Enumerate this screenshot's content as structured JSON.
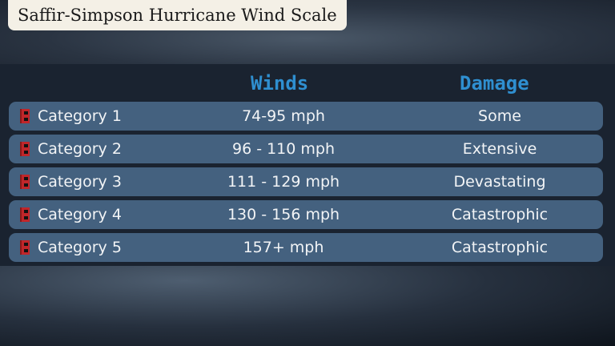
{
  "title": "Saffir-Simpson Hurricane Wind Scale",
  "headers": {
    "winds": "Winds",
    "damage": "Damage"
  },
  "rows": [
    {
      "category": "Category 1",
      "winds": "74-95 mph",
      "damage": "Some",
      "icon": "hurricane-warning-flag-icon"
    },
    {
      "category": "Category 2",
      "winds": "96 - 110 mph",
      "damage": "Extensive",
      "icon": "hurricane-warning-flag-icon"
    },
    {
      "category": "Category 3",
      "winds": "111 - 129 mph",
      "damage": "Devastating",
      "icon": "hurricane-warning-flag-icon"
    },
    {
      "category": "Category 4",
      "winds": "130 - 156 mph",
      "damage": "Catastrophic",
      "icon": "hurricane-warning-flag-icon"
    },
    {
      "category": "Category 5",
      "winds": "157+ mph",
      "damage": "Catastrophic",
      "icon": "hurricane-warning-flag-icon"
    }
  ],
  "colors": {
    "header": "#2f8fd0",
    "row": "#44617f",
    "flag": "#c0262a"
  }
}
